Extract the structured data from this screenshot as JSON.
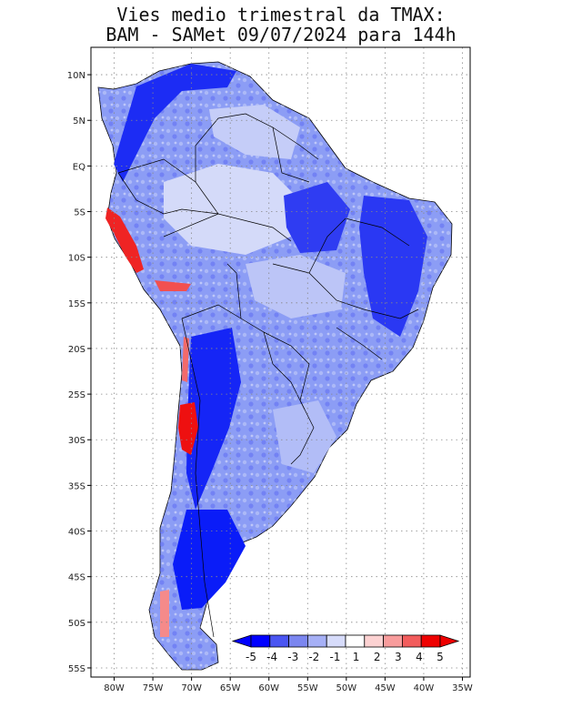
{
  "title_line1": "Vies medio trimestral da TMAX:",
  "title_line2": "BAM - SAMet 09/07/2024  para 144h",
  "map": {
    "lon_range": [
      -83,
      -34
    ],
    "lat_range": [
      -56,
      13
    ],
    "lon_ticks": [
      "80W",
      "75W",
      "70W",
      "65W",
      "60W",
      "55W",
      "50W",
      "45W",
      "40W",
      "35W"
    ],
    "lat_ticks": [
      "10N",
      "5N",
      "EQ",
      "5S",
      "10S",
      "15S",
      "20S",
      "25S",
      "30S",
      "35S",
      "40S",
      "45S",
      "50S",
      "55S"
    ],
    "grid": "dotted",
    "land_color": "#8a9cf5",
    "ocean_color": "#ffffff"
  },
  "colorbar": {
    "labels": [
      "-5",
      "-4",
      "-3",
      "-2",
      "-1",
      "1",
      "2",
      "3",
      "4",
      "5"
    ],
    "colors": [
      "#0000ff",
      "#4a55f2",
      "#7b86f0",
      "#a6b0f6",
      "#d7dcfb",
      "#ffffff",
      "#fcd2d2",
      "#f89c9c",
      "#f25c5c",
      "#ee0000"
    ],
    "extend": "both"
  }
}
